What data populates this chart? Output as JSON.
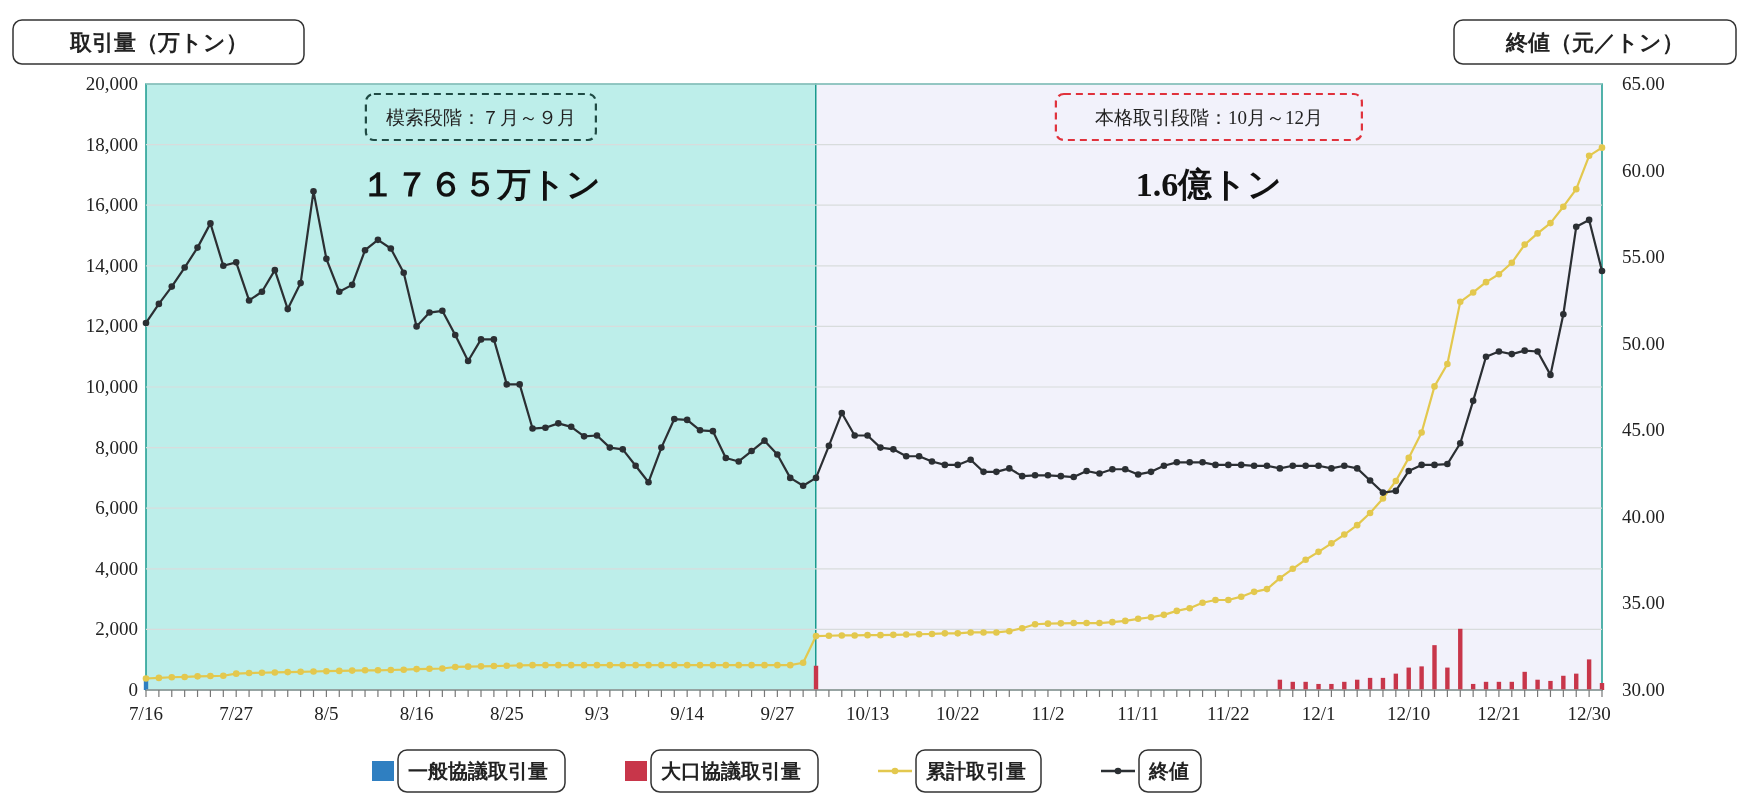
{
  "chart_data": {
    "type": "bar",
    "ylabel": "取引量（万トン）",
    "y2label": "終値（元／トン）",
    "categories": [
      "7/16",
      null,
      null,
      null,
      null,
      null,
      null,
      "7/27",
      null,
      null,
      null,
      null,
      null,
      null,
      "8/5",
      null,
      null,
      null,
      null,
      null,
      null,
      "8/16",
      null,
      null,
      null,
      null,
      null,
      null,
      "8/25",
      null,
      null,
      null,
      null,
      null,
      null,
      "9/3",
      null,
      null,
      null,
      null,
      null,
      null,
      "9/14",
      null,
      null,
      null,
      null,
      null,
      null,
      "9/27",
      null,
      null,
      null,
      null,
      null,
      null,
      "10/13",
      null,
      null,
      null,
      null,
      null,
      null,
      "10/22",
      null,
      null,
      null,
      null,
      null,
      null,
      "11/2",
      null,
      null,
      null,
      null,
      null,
      null,
      "11/11",
      null,
      null,
      null,
      null,
      null,
      null,
      "11/22",
      null,
      null,
      null,
      null,
      null,
      null,
      "12/1",
      null,
      null,
      null,
      null,
      null,
      null,
      "12/10",
      null,
      null,
      null,
      null,
      null,
      null,
      "12/21",
      null,
      null,
      null,
      null,
      null,
      null,
      "12/30",
      null
    ],
    "series": [
      {
        "name": "一般協議取引量",
        "color": "#2f7fc1",
        "values": [
          300,
          null,
          null,
          null,
          null,
          null,
          null,
          null,
          null,
          null,
          null,
          null,
          null,
          null,
          null,
          null,
          null,
          null,
          null,
          null,
          null,
          null,
          null,
          null,
          null,
          null,
          null,
          null,
          null,
          null,
          null,
          null,
          null,
          null,
          null,
          null,
          null,
          null,
          null,
          null,
          null,
          null,
          null,
          null,
          null,
          null,
          null,
          null,
          null,
          null,
          null,
          null,
          null,
          null,
          null,
          null,
          null,
          null,
          null,
          null,
          null,
          null,
          null,
          null,
          null,
          null,
          null,
          null,
          null,
          null,
          null,
          null,
          null,
          null,
          null,
          null,
          null,
          null,
          null,
          null,
          null,
          null,
          null,
          null,
          null,
          null,
          null,
          null,
          null,
          null,
          null,
          null,
          null,
          null,
          null,
          null,
          null,
          null,
          null,
          null,
          null,
          null,
          null,
          null,
          null,
          null,
          null,
          null,
          null,
          null,
          null,
          null,
          null,
          null
        ]
      },
      {
        "name": "大口協議取引量",
        "color": "#c8364a",
        "values": [
          null,
          null,
          null,
          null,
          null,
          null,
          null,
          null,
          null,
          null,
          null,
          null,
          null,
          null,
          null,
          null,
          null,
          null,
          null,
          null,
          null,
          null,
          null,
          null,
          null,
          null,
          null,
          null,
          null,
          null,
          null,
          null,
          null,
          null,
          null,
          null,
          null,
          null,
          null,
          null,
          null,
          null,
          null,
          null,
          null,
          null,
          null,
          null,
          null,
          null,
          null,
          null,
          800,
          null,
          null,
          null,
          null,
          null,
          null,
          null,
          null,
          null,
          null,
          null,
          null,
          null,
          null,
          null,
          null,
          null,
          null,
          null,
          null,
          null,
          null,
          null,
          null,
          null,
          null,
          null,
          null,
          null,
          null,
          null,
          null,
          null,
          null,
          null,
          340,
          270,
          270,
          200,
          200,
          270,
          340,
          400,
          400,
          540,
          740,
          780,
          1480,
          740,
          2020,
          200,
          270,
          270,
          270,
          600,
          340,
          300,
          470,
          540,
          1010,
          230
        ]
      },
      {
        "name": "累計取引量",
        "type": "line",
        "color": "#e3c84e",
        "values": [
          380,
          400,
          420,
          430,
          450,
          460,
          470,
          540,
          560,
          570,
          580,
          590,
          600,
          610,
          620,
          630,
          640,
          650,
          650,
          660,
          670,
          690,
          700,
          710,
          760,
          770,
          780,
          790,
          800,
          810,
          820,
          820,
          820,
          820,
          820,
          820,
          820,
          820,
          820,
          820,
          820,
          820,
          820,
          820,
          820,
          820,
          820,
          820,
          820,
          820,
          820,
          900,
          1780,
          1790,
          1800,
          1800,
          1810,
          1810,
          1820,
          1830,
          1840,
          1850,
          1870,
          1870,
          1900,
          1900,
          1900,
          1940,
          2040,
          2170,
          2190,
          2200,
          2210,
          2210,
          2210,
          2240,
          2280,
          2350,
          2400,
          2480,
          2610,
          2700,
          2880,
          2970,
          2970,
          3080,
          3240,
          3330,
          3690,
          4000,
          4300,
          4560,
          4840,
          5130,
          5440,
          5840,
          6320,
          6900,
          7660,
          8500,
          10020,
          10760,
          12810,
          13120,
          13460,
          13720,
          14100,
          14700,
          15070,
          15410,
          15950,
          16530,
          17630,
          17900
        ]
      },
      {
        "name": "終値",
        "type": "line",
        "axis": "y2",
        "color": "#2b2f33",
        "values": [
          51.2,
          52.3,
          53.3,
          54.4,
          55.55,
          56.95,
          54.5,
          54.7,
          52.5,
          53.0,
          54.25,
          52.0,
          53.5,
          58.8,
          54.9,
          53.0,
          53.4,
          55.4,
          56.0,
          55.5,
          54.1,
          51.0,
          51.8,
          51.9,
          50.5,
          49.0,
          50.25,
          50.25,
          47.65,
          47.65,
          45.1,
          45.15,
          45.4,
          45.2,
          44.65,
          44.7,
          44.0,
          43.9,
          42.95,
          42.0,
          44.0,
          45.65,
          45.6,
          45.0,
          44.95,
          43.4,
          43.2,
          43.8,
          44.4,
          43.6,
          42.25,
          41.8,
          42.25,
          44.1,
          46.0,
          44.7,
          44.7,
          44.0,
          43.9,
          43.5,
          43.5,
          43.2,
          43.0,
          43.0,
          43.3,
          42.6,
          42.6,
          42.8,
          42.35,
          42.4,
          42.4,
          42.35,
          42.3,
          42.65,
          42.5,
          42.75,
          42.75,
          42.45,
          42.6,
          42.95,
          43.15,
          43.15,
          43.15,
          43.0,
          43.0,
          43.0,
          42.95,
          42.95,
          42.8,
          42.95,
          42.95,
          42.95,
          42.8,
          42.95,
          42.8,
          42.1,
          41.4,
          41.5,
          42.65,
          43.0,
          43.0,
          43.05,
          44.25,
          46.7,
          49.25,
          49.55,
          49.4,
          49.6,
          49.55,
          48.2,
          51.7,
          56.75,
          57.15,
          54.2
        ]
      }
    ],
    "ylim": [
      0,
      20000
    ],
    "yticks": [
      {
        "value": 0,
        "label": "0"
      },
      {
        "value": 2000,
        "label": "2,000"
      },
      {
        "value": 4000,
        "label": "4,000"
      },
      {
        "value": 6000,
        "label": "6,000"
      },
      {
        "value": 8000,
        "label": "8,000"
      },
      {
        "value": 10000,
        "label": "10,000"
      },
      {
        "value": 12000,
        "label": "12,000"
      },
      {
        "value": 14000,
        "label": "14,000"
      },
      {
        "value": 16000,
        "label": "16,000"
      },
      {
        "value": 18000,
        "label": "18,000"
      },
      {
        "value": 20000,
        "label": "20,000"
      }
    ],
    "y2lim": [
      30,
      65
    ],
    "y2ticks": [
      {
        "value": 30,
        "label": "30.00"
      },
      {
        "value": 35,
        "label": "35.00"
      },
      {
        "value": 40,
        "label": "40.00"
      },
      {
        "value": 45,
        "label": "45.00"
      },
      {
        "value": 50,
        "label": "50.00"
      },
      {
        "value": 55,
        "label": "55.00"
      },
      {
        "value": 60,
        "label": "60.00"
      },
      {
        "value": 65,
        "label": "65.00"
      }
    ],
    "annotations": [
      "模索段階：７月～９月",
      "１７６５万トン",
      "本格取引段階：10月～12月",
      "1.6億トン"
    ],
    "grid": "y",
    "legend": "bottom",
    "marker": "circle"
  }
}
